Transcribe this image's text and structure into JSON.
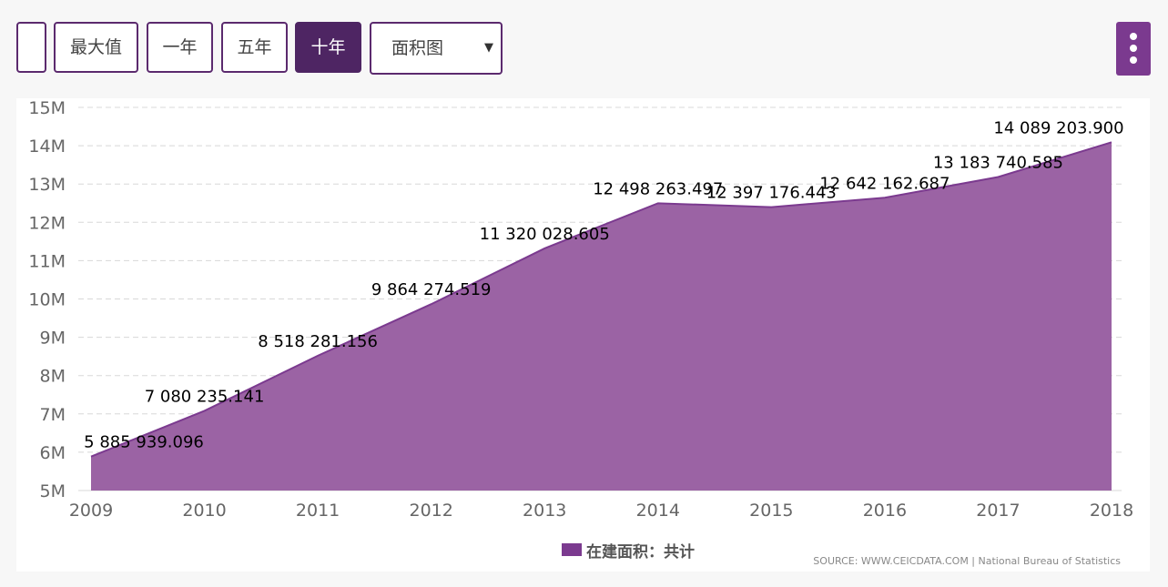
{
  "toolbar": {
    "blank_label": "",
    "buttons": [
      {
        "label": "最大值",
        "active": false
      },
      {
        "label": "一年",
        "active": false
      },
      {
        "label": "五年",
        "active": false
      },
      {
        "label": "十年",
        "active": true
      }
    ],
    "select_value": "面积图",
    "caret": "▼"
  },
  "legend": {
    "label": "在建面积：共计"
  },
  "source": "SOURCE: WWW.CEICDATA.COM | National Bureau of Statistics",
  "colors": {
    "series": "#7b3a8f",
    "fill": "#9b63a4",
    "grid": "#d8d8d8",
    "axis_text": "#666666"
  },
  "chart_data": {
    "type": "area",
    "x": [
      "2009",
      "2010",
      "2011",
      "2012",
      "2013",
      "2014",
      "2015",
      "2016",
      "2017",
      "2018"
    ],
    "series": [
      {
        "name": "在建面积：共计",
        "values": [
          5885939.096,
          7080235.141,
          8518281.156,
          9864274.519,
          11320028.605,
          12498263.497,
          12397176.443,
          12642162.687,
          13183740.585,
          14089203.9
        ],
        "data_labels": [
          "5 885 939.096",
          "7 080 235.141",
          "8 518 281.156",
          "9 864 274.519",
          "11 320 028.605",
          "12 498 263.497",
          "12 397 176.443",
          "12 642 162.687",
          "13 183 740.585",
          "14 089 203.900"
        ]
      }
    ],
    "y_ticks": [
      "5M",
      "6M",
      "7M",
      "8M",
      "9M",
      "10M",
      "11M",
      "12M",
      "13M",
      "14M",
      "15M"
    ],
    "ylim": [
      5000000,
      15000000
    ],
    "grid": true,
    "legend_position": "bottom-center"
  }
}
